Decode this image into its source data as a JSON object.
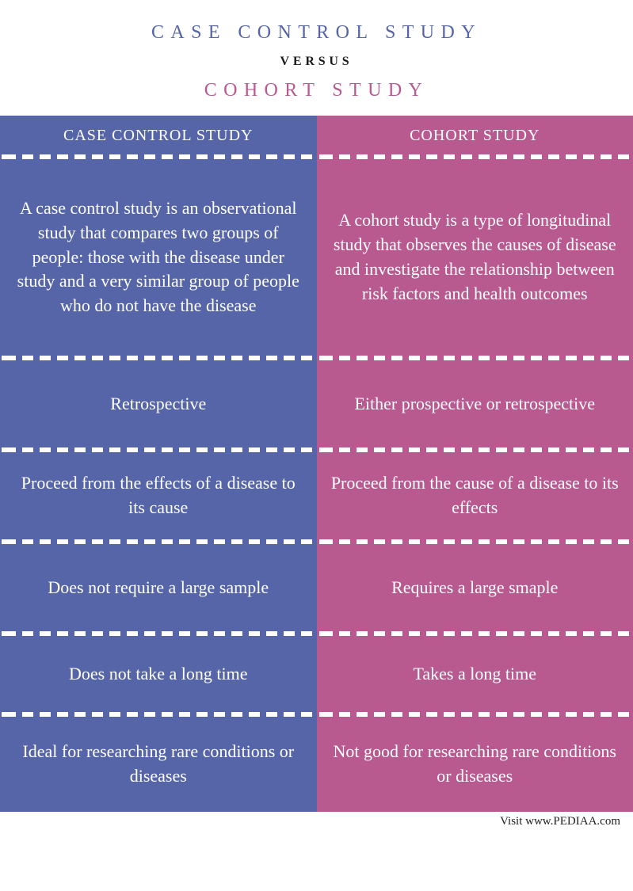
{
  "header": {
    "title1": "CASE CONTROL STUDY",
    "versus": "VERSUS",
    "title2": "COHORT STUDY",
    "title1_color": "#5565a8",
    "versus_color": "#1a1a1a",
    "title2_color": "#b85990"
  },
  "columns": {
    "left": {
      "bg_color": "#5565a8",
      "header": "CASE CONTROL STUDY",
      "rows": [
        "A case control study is an observational study that compares two groups of people: those with the disease under study and a very similar group of people who do not have the disease",
        "Retrospective",
        "Proceed from the effects of a disease to its cause",
        "Does not require a large sample",
        "Does not take a long time",
        "Ideal for researching rare conditions or diseases"
      ]
    },
    "right": {
      "bg_color": "#b85990",
      "header": "COHORT STUDY",
      "rows": [
        "A cohort study is a type of longitudinal study that observes the causes of disease and investigate the relationship between risk factors and health outcomes",
        "Either prospective or retrospective",
        "Proceed from the cause of a disease to its effects",
        "Requires a large smaple",
        "Takes a long time",
        "Not good for researching rare conditions or diseases"
      ]
    }
  },
  "footer": {
    "text": "Visit www.PEDIAA.com"
  },
  "style": {
    "text_color": "#ffffff",
    "body_font": "Georgia, serif",
    "cell_fontsize": 22,
    "header_fontsize": 20,
    "title_fontsize": 24
  }
}
